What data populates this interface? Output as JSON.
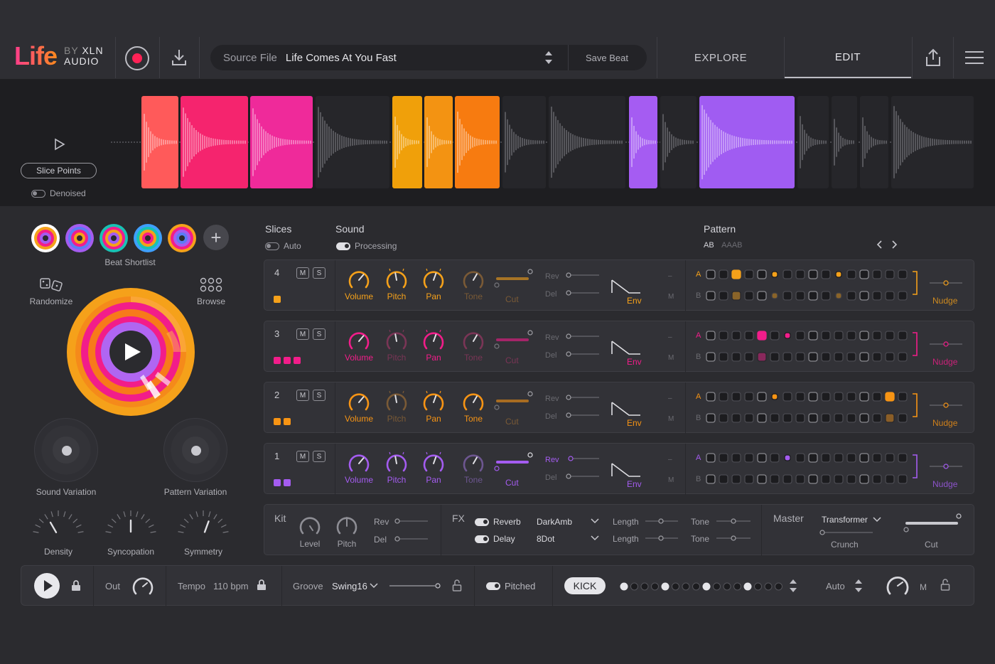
{
  "app": {
    "logo_main": "Life",
    "logo_by": "BY",
    "logo_brand": "XLN",
    "logo_sub": "AUDIO"
  },
  "header": {
    "source_label": "Source File",
    "source_value": "Life Comes At You Fast",
    "save_label": "Save Beat",
    "tabs": [
      {
        "label": "EXPLORE",
        "active": false
      },
      {
        "label": "EDIT",
        "active": true
      }
    ]
  },
  "waveform": {
    "slice_points_label": "Slice Points",
    "denoised_label": "Denoised",
    "denoised_on": false
  },
  "left": {
    "beat_shortlist_label": "Beat Shortlist",
    "randomize_label": "Randomize",
    "browse_label": "Browse",
    "sound_variation_label": "Sound Variation",
    "pattern_variation_label": "Pattern Variation",
    "knobs": [
      {
        "label": "Density"
      },
      {
        "label": "Syncopation"
      },
      {
        "label": "Symmetry"
      }
    ]
  },
  "sections": {
    "slices_title": "Slices",
    "slices_auto_label": "Auto",
    "slices_auto_on": false,
    "sound_title": "Sound",
    "sound_processing_label": "Processing",
    "sound_processing_on": true,
    "pattern_title": "Pattern",
    "pattern_tab_active": "AB",
    "pattern_tab_inactive": "AAAB"
  },
  "tracks": [
    {
      "num": "4",
      "color": "#f5a11a",
      "swatch_count": 1,
      "m": "M",
      "s": "S",
      "knobs": [
        "Volume",
        "Pitch",
        "Pan",
        "Tone"
      ],
      "cut": "Cut",
      "rev": "Rev",
      "del": "Del",
      "env": "Env",
      "mlabel": "M",
      "nudge": "Nudge",
      "row_a": "A",
      "row_b": "B",
      "active_knobs": [
        true,
        true,
        true,
        false
      ],
      "cut_active": false,
      "a_steps": [
        0,
        0,
        1,
        0,
        0,
        2,
        0,
        0,
        0,
        0,
        2,
        0,
        0,
        0,
        0,
        0
      ],
      "b_steps": [
        0,
        0,
        3,
        0,
        0,
        4,
        0,
        0,
        0,
        0,
        4,
        0,
        0,
        0,
        0,
        0
      ]
    },
    {
      "num": "3",
      "color": "#f21d8a",
      "swatch_count": 3,
      "m": "M",
      "s": "S",
      "knobs": [
        "Volume",
        "Pitch",
        "Pan",
        "Tone"
      ],
      "cut": "Cut",
      "rev": "Rev",
      "del": "Del",
      "env": "Env",
      "mlabel": "M",
      "nudge": "Nudge",
      "row_a": "A",
      "row_b": "B",
      "active_knobs": [
        true,
        false,
        true,
        false
      ],
      "cut_active": false,
      "a_steps": [
        0,
        0,
        0,
        0,
        1,
        0,
        2,
        0,
        0,
        0,
        0,
        0,
        0,
        0,
        0,
        0
      ],
      "b_steps": [
        0,
        0,
        0,
        0,
        3,
        0,
        0,
        0,
        0,
        0,
        0,
        0,
        0,
        0,
        0,
        0
      ]
    },
    {
      "num": "2",
      "color": "#f79414",
      "swatch_count": 2,
      "m": "M",
      "s": "S",
      "knobs": [
        "Volume",
        "Pitch",
        "Pan",
        "Tone"
      ],
      "cut": "Cut",
      "rev": "Rev",
      "del": "Del",
      "env": "Env",
      "mlabel": "M",
      "nudge": "Nudge",
      "row_a": "A",
      "row_b": "B",
      "active_knobs": [
        true,
        false,
        true,
        true
      ],
      "cut_active": false,
      "a_steps": [
        0,
        0,
        0,
        0,
        0,
        2,
        0,
        0,
        0,
        0,
        0,
        0,
        0,
        0,
        1,
        0
      ],
      "b_steps": [
        0,
        0,
        0,
        0,
        0,
        0,
        0,
        0,
        0,
        0,
        0,
        0,
        0,
        0,
        3,
        0
      ]
    },
    {
      "num": "1",
      "color": "#a45cf0",
      "swatch_count": 2,
      "m": "M",
      "s": "S",
      "knobs": [
        "Volume",
        "Pitch",
        "Pan",
        "Tone"
      ],
      "cut": "Cut",
      "rev": "Rev",
      "del": "Del",
      "env": "Env",
      "mlabel": "M",
      "nudge": "Nudge",
      "row_a": "A",
      "row_b": "B",
      "active_knobs": [
        true,
        true,
        true,
        false
      ],
      "cut_active": true,
      "a_steps": [
        0,
        0,
        0,
        0,
        0,
        0,
        2,
        0,
        0,
        0,
        0,
        0,
        0,
        0,
        0,
        0
      ],
      "b_steps": [
        0,
        0,
        0,
        0,
        0,
        0,
        0,
        0,
        0,
        0,
        0,
        0,
        0,
        0,
        0,
        0
      ]
    }
  ],
  "kit": {
    "title": "Kit",
    "level": "Level",
    "pitch": "Pitch",
    "rev": "Rev",
    "del": "Del"
  },
  "fx": {
    "title": "FX",
    "reverb_label": "Reverb",
    "reverb_value": "DarkAmb",
    "delay_label": "Delay",
    "delay_value": "8Dot",
    "length": "Length",
    "tone": "Tone"
  },
  "master": {
    "title": "Master",
    "preset": "Transformer",
    "crunch": "Crunch",
    "cut": "Cut"
  },
  "transport": {
    "out_label": "Out",
    "tempo_label": "Tempo",
    "tempo_value": "110 bpm",
    "groove_label": "Groove",
    "groove_value": "Swing16",
    "pitched_label": "Pitched",
    "kick_label": "KICK",
    "auto_label": "Auto",
    "m_label": "M",
    "kick_steps": [
      1,
      0,
      0,
      0,
      1,
      0,
      0,
      0,
      1,
      0,
      0,
      0,
      1,
      0,
      0,
      0
    ]
  },
  "colors": {
    "orange": "#f5a11a",
    "pink": "#f21d8a",
    "purple": "#a45cf0",
    "red": "#ff5a5a",
    "record": "#ff2256"
  }
}
